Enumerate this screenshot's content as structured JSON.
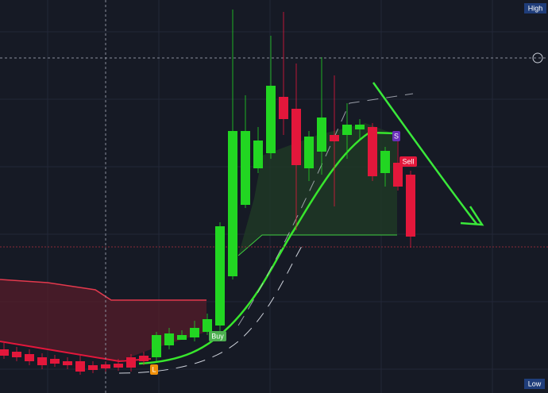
{
  "chart_data": {
    "type": "candlestick",
    "ylim": [
      0,
      495
    ],
    "up_color": "#22d622",
    "down_color": "#e3173b",
    "open": [
      55,
      52,
      49,
      45,
      43,
      40,
      40,
      35,
      36,
      37,
      45,
      47,
      45,
      60,
      67,
      70,
      77,
      85,
      147,
      237,
      283,
      302,
      373,
      358,
      283,
      304,
      325,
      325,
      332,
      335,
      277,
      290,
      275
    ],
    "close": [
      47,
      45,
      40,
      35,
      37,
      35,
      27,
      29,
      31,
      32,
      32,
      40,
      73,
      75,
      73,
      82,
      93,
      210,
      330,
      330,
      318,
      387,
      345,
      287,
      323,
      347,
      317,
      338,
      338,
      273,
      305,
      260,
      197
    ],
    "high": [
      63,
      58,
      55,
      50,
      48,
      45,
      47,
      40,
      40,
      43,
      49,
      52,
      77,
      82,
      79,
      91,
      100,
      215,
      483,
      375,
      335,
      450,
      480,
      415,
      330,
      423,
      400,
      365,
      345,
      340,
      310,
      320,
      280
    ],
    "low": [
      43,
      40,
      35,
      30,
      33,
      30,
      23,
      25,
      27,
      28,
      27,
      35,
      40,
      55,
      67,
      65,
      73,
      75,
      143,
      233,
      277,
      295,
      325,
      205,
      267,
      275,
      235,
      295,
      320,
      267,
      260,
      255,
      183
    ],
    "markers": {
      "buy": "Buy",
      "sell": "Sell",
      "long": "L",
      "short": "S"
    },
    "labels": {
      "high": "High",
      "low": "Low"
    }
  }
}
